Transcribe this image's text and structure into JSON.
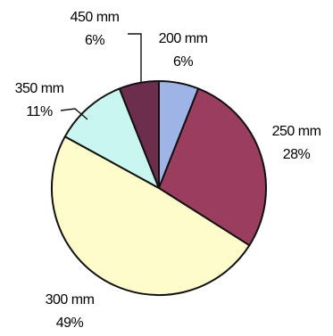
{
  "chart_data": {
    "type": "pie",
    "slices": [
      {
        "name": "200 mm",
        "percent_label": "6%",
        "value": 6,
        "color": "#9fb4e6"
      },
      {
        "name": "250 mm",
        "percent_label": "28%",
        "value": 28,
        "color": "#9b3d5f"
      },
      {
        "name": "300 mm",
        "percent_label": "49%",
        "value": 49,
        "color": "#fffccb"
      },
      {
        "name": "350 mm",
        "percent_label": "11%",
        "value": 11,
        "color": "#c8f7f0"
      },
      {
        "name": "450 mm",
        "percent_label": "6%",
        "value": 6,
        "color": "#6d2d4d"
      }
    ],
    "start": "top",
    "direction": "clockwise",
    "legend": "none"
  }
}
